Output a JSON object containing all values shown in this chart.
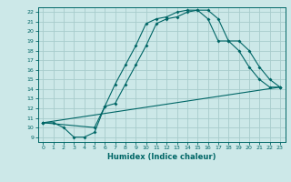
{
  "xlabel": "Humidex (Indice chaleur)",
  "ylabel": "",
  "bg_color": "#cce8e8",
  "grid_color": "#a8cccc",
  "line_color": "#006666",
  "xlim": [
    -0.5,
    23.5
  ],
  "ylim": [
    8.5,
    22.5
  ],
  "xticks": [
    0,
    1,
    2,
    3,
    4,
    5,
    6,
    7,
    8,
    9,
    10,
    11,
    12,
    13,
    14,
    15,
    16,
    17,
    18,
    19,
    20,
    21,
    22,
    23
  ],
  "yticks": [
    9,
    10,
    11,
    12,
    13,
    14,
    15,
    16,
    17,
    18,
    19,
    20,
    21,
    22
  ],
  "line1_x": [
    0,
    1,
    2,
    3,
    4,
    5,
    6,
    7,
    8,
    9,
    10,
    11,
    12,
    13,
    14,
    15,
    16,
    17,
    18,
    19,
    20,
    21,
    22,
    23
  ],
  "line1_y": [
    10.5,
    10.5,
    10.0,
    9.0,
    9.0,
    9.5,
    12.2,
    12.5,
    14.5,
    16.5,
    18.5,
    20.8,
    21.3,
    21.5,
    22.0,
    22.2,
    22.2,
    21.3,
    19.0,
    19.0,
    18.0,
    16.3,
    15.0,
    14.2
  ],
  "line2_x": [
    0,
    23
  ],
  "line2_y": [
    10.5,
    14.2
  ],
  "line3_x": [
    0,
    5,
    6,
    7,
    8,
    9,
    10,
    11,
    12,
    13,
    14,
    15,
    16,
    17,
    18,
    19,
    20,
    21,
    22,
    23
  ],
  "line3_y": [
    10.5,
    10.0,
    12.2,
    14.5,
    16.5,
    18.5,
    20.8,
    21.3,
    21.5,
    22.0,
    22.2,
    22.2,
    21.3,
    19.0,
    19.0,
    18.0,
    16.3,
    15.0,
    14.2,
    14.2
  ],
  "marker_size": 2.0,
  "linewidth": 0.8,
  "tick_fontsize": 4.5,
  "xlabel_fontsize": 6.0
}
